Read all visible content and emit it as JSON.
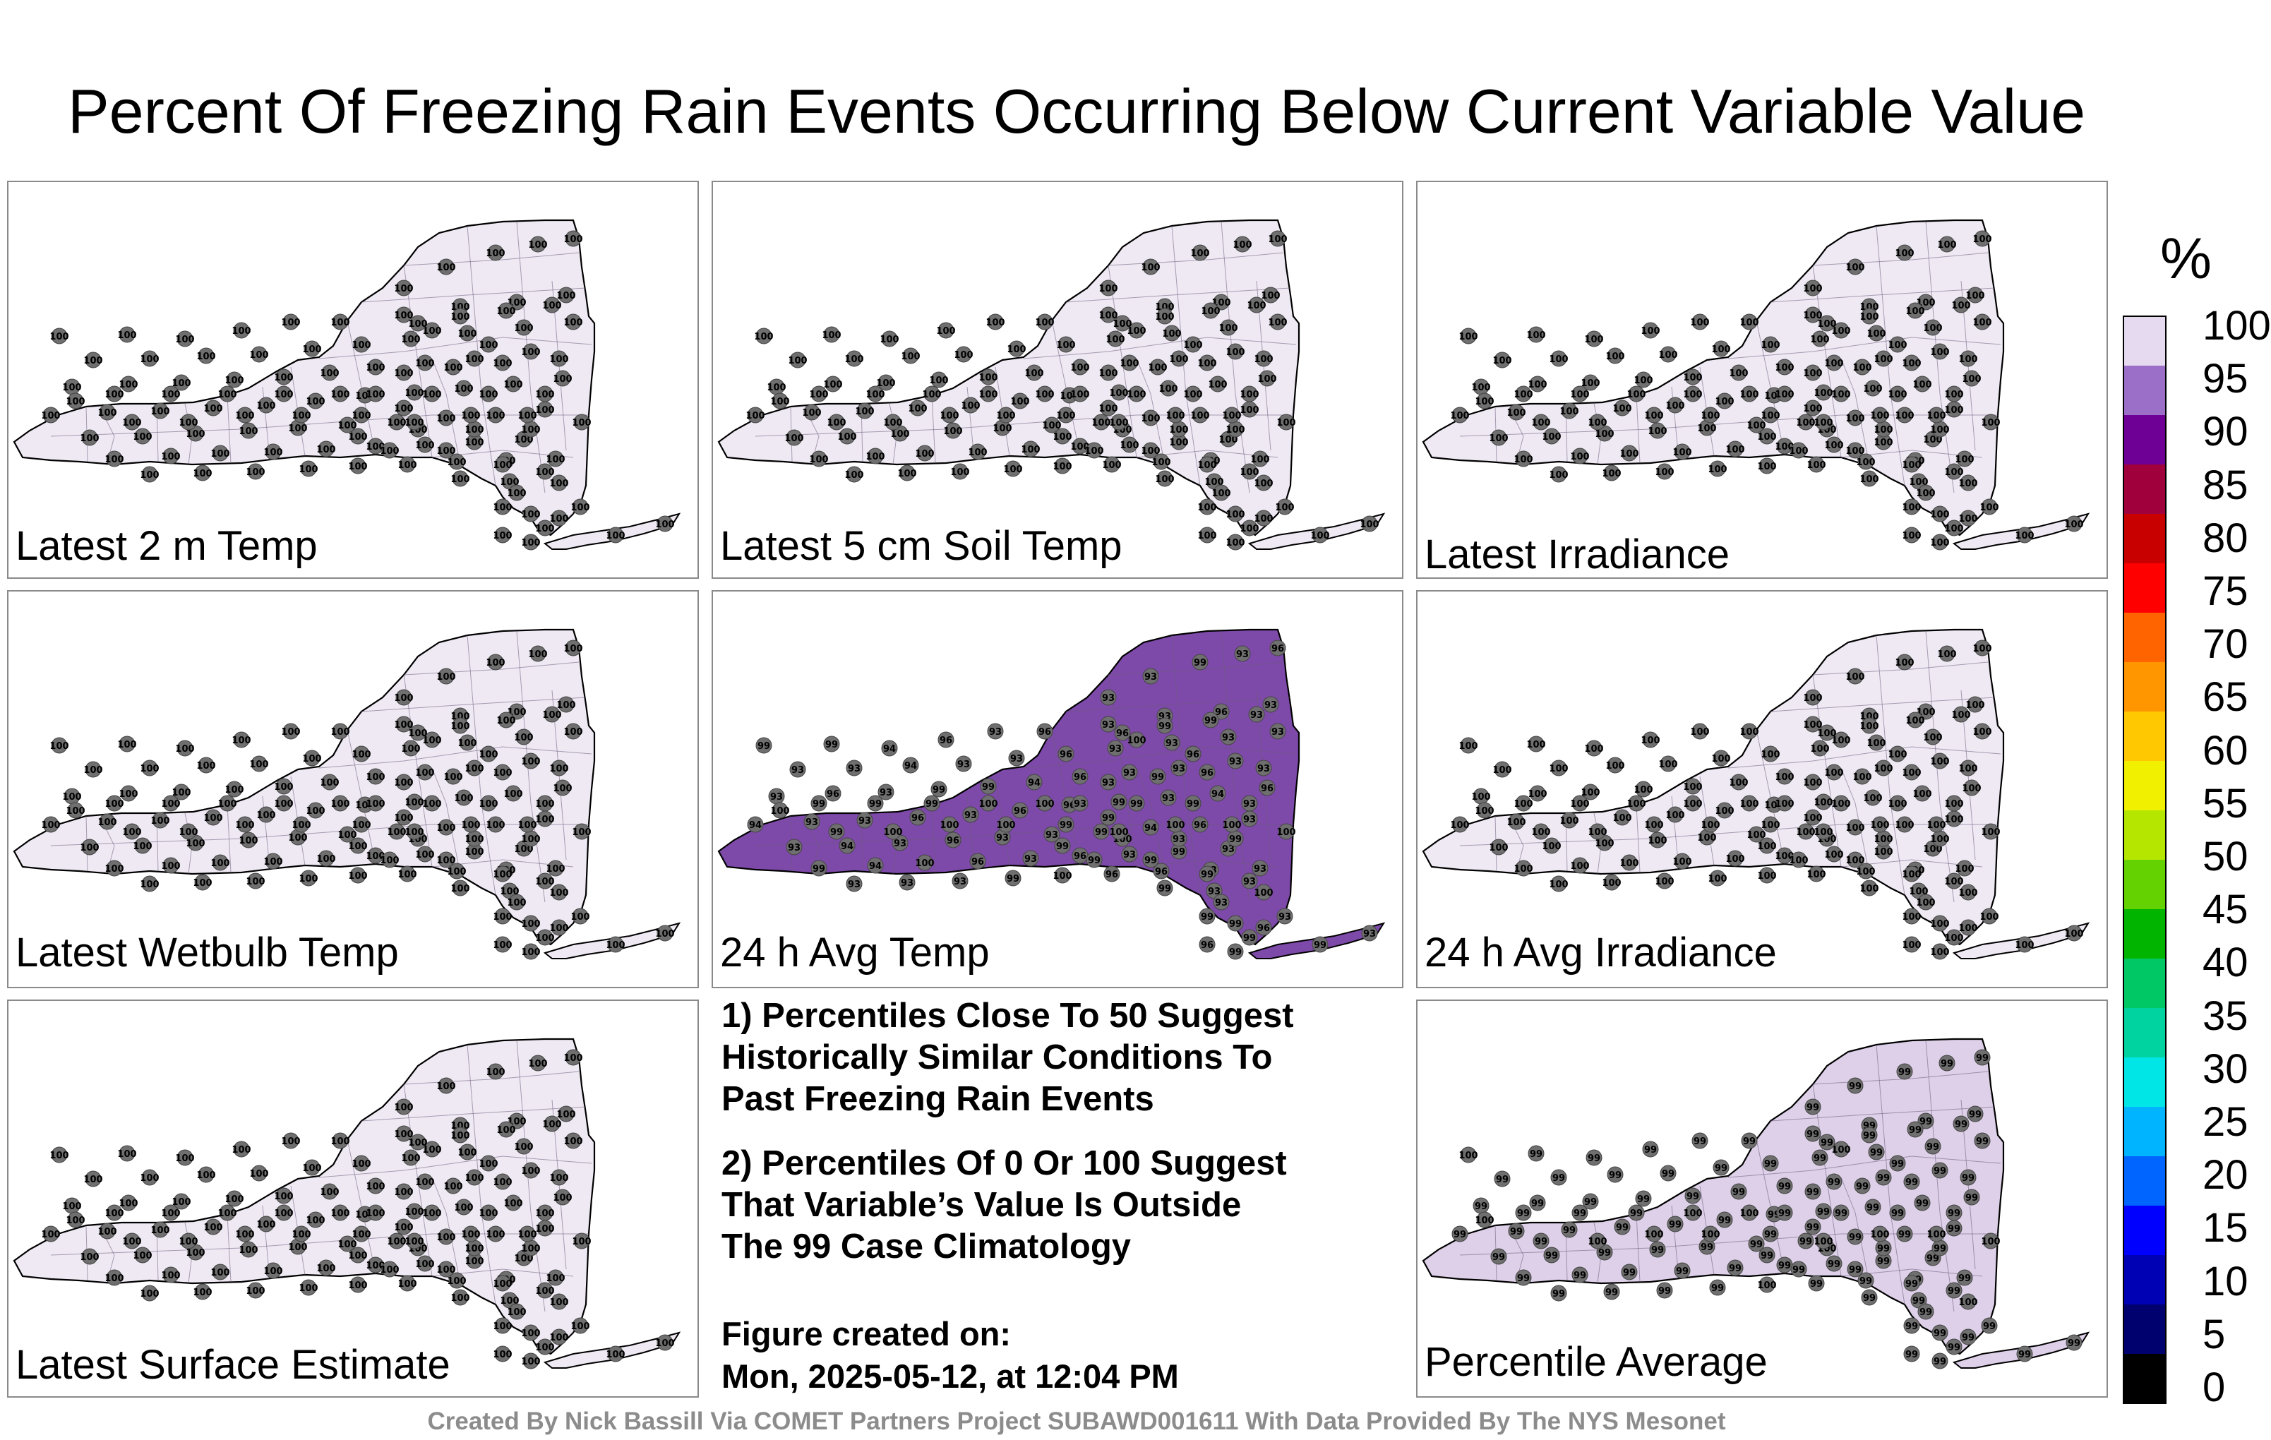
{
  "title": "Percent Of Freezing Rain Events Occurring Below Current Variable Value",
  "panels": [
    {
      "label": "Latest 2 m Temp",
      "values": [
        100,
        100,
        100,
        100,
        100,
        100,
        100,
        100,
        100,
        100,
        100,
        100,
        100,
        100,
        100,
        100,
        100,
        100,
        100,
        100,
        100,
        100,
        100,
        100,
        100,
        100,
        100,
        100,
        100,
        100,
        100,
        100,
        100,
        100,
        100,
        100,
        100,
        100,
        100,
        100,
        100,
        100,
        100,
        100,
        100,
        100,
        100,
        100,
        100,
        100,
        100,
        100,
        100,
        100,
        100,
        100,
        100,
        100,
        100,
        100,
        100,
        100,
        100,
        100,
        100,
        100,
        100,
        100,
        100,
        100,
        100,
        100,
        100,
        100,
        100,
        100,
        100,
        100,
        100,
        100,
        100,
        100,
        100,
        100,
        100,
        100,
        100,
        100,
        100,
        100,
        100,
        100,
        100,
        100,
        100,
        100,
        100,
        100,
        100,
        100,
        100,
        100,
        100,
        100,
        100,
        100,
        100,
        100,
        100,
        100,
        100,
        100,
        100,
        100,
        100,
        100,
        100,
        100,
        100,
        100,
        100,
        100,
        100,
        100,
        100
      ],
      "fill": "#efe9f3"
    },
    {
      "label": "Latest 5 cm Soil Temp",
      "values": [
        100,
        100,
        100,
        100,
        100,
        100,
        100,
        100,
        100,
        100,
        100,
        100,
        100,
        100,
        100,
        100,
        100,
        100,
        100,
        100,
        100,
        100,
        100,
        100,
        100,
        100,
        100,
        100,
        100,
        100,
        100,
        100,
        100,
        100,
        100,
        100,
        100,
        100,
        100,
        100,
        100,
        100,
        100,
        100,
        100,
        100,
        100,
        100,
        100,
        100,
        100,
        100,
        100,
        100,
        100,
        100,
        100,
        100,
        100,
        100,
        100,
        100,
        100,
        100,
        100,
        100,
        100,
        100,
        100,
        100,
        100,
        100,
        100,
        100,
        100,
        100,
        100,
        100,
        100,
        100,
        100,
        100,
        100,
        100,
        100,
        100,
        100,
        100,
        100,
        100,
        100,
        100,
        100,
        100,
        100,
        100,
        100,
        100,
        100,
        100,
        100,
        100,
        100,
        100,
        100,
        100,
        100,
        100,
        100,
        100,
        100,
        100,
        100,
        100,
        100,
        100,
        100,
        100,
        100,
        100,
        100,
        100,
        100,
        100,
        100
      ],
      "fill": "#efe9f3"
    },
    {
      "label": "Latest Irradiance",
      "values": [
        100,
        100,
        100,
        100,
        100,
        100,
        100,
        100,
        100,
        100,
        100,
        100,
        100,
        100,
        100,
        100,
        100,
        100,
        100,
        100,
        100,
        100,
        100,
        100,
        100,
        100,
        100,
        100,
        100,
        100,
        100,
        100,
        100,
        100,
        100,
        100,
        100,
        100,
        100,
        100,
        100,
        100,
        100,
        100,
        100,
        100,
        100,
        100,
        100,
        100,
        100,
        100,
        100,
        100,
        100,
        100,
        100,
        100,
        100,
        100,
        100,
        100,
        100,
        100,
        100,
        100,
        100,
        100,
        100,
        100,
        100,
        100,
        100,
        100,
        100,
        100,
        100,
        100,
        100,
        100,
        100,
        100,
        100,
        100,
        100,
        100,
        100,
        100,
        100,
        100,
        100,
        100,
        100,
        100,
        100,
        100,
        100,
        100,
        100,
        100,
        100,
        100,
        100,
        100,
        100,
        100,
        100,
        100,
        100,
        100,
        100,
        100,
        100,
        100,
        100,
        100,
        100,
        100,
        100,
        100,
        100,
        100,
        100,
        100,
        100
      ],
      "fill": "#efe9f3"
    },
    {
      "label": "Latest Wetbulb Temp",
      "values": [
        100,
        100,
        100,
        100,
        100,
        100,
        100,
        100,
        100,
        100,
        100,
        100,
        100,
        100,
        100,
        100,
        100,
        100,
        100,
        100,
        100,
        100,
        100,
        100,
        100,
        100,
        100,
        100,
        100,
        100,
        100,
        100,
        100,
        100,
        100,
        100,
        100,
        100,
        100,
        100,
        100,
        100,
        100,
        100,
        100,
        100,
        100,
        100,
        100,
        100,
        100,
        100,
        100,
        100,
        100,
        100,
        100,
        100,
        100,
        100,
        100,
        100,
        100,
        100,
        100,
        100,
        100,
        100,
        100,
        100,
        100,
        100,
        100,
        100,
        100,
        100,
        100,
        100,
        100,
        100,
        100,
        100,
        100,
        100,
        100,
        100,
        100,
        100,
        100,
        100,
        100,
        100,
        100,
        100,
        100,
        100,
        100,
        100,
        100,
        100,
        100,
        100,
        100,
        100,
        100,
        100,
        100,
        100,
        100,
        100,
        100,
        100,
        100,
        100,
        100,
        100,
        100,
        100,
        100,
        100,
        100,
        100,
        100,
        100,
        100
      ],
      "fill": "#efe9f3"
    },
    {
      "label": "24 h Avg Temp",
      "values": [
        99,
        99,
        94,
        96,
        93,
        96,
        93,
        93,
        96,
        93,
        93,
        93,
        94,
        93,
        93,
        96,
        93,
        93,
        93,
        93,
        93,
        96,
        93,
        99,
        99,
        94,
        96,
        93,
        93,
        93,
        94,
        93,
        93,
        96,
        93,
        96,
        96,
        99,
        93,
        94,
        96,
        93,
        94,
        93,
        96,
        93,
        93,
        99,
        94,
        96,
        93,
        99,
        94,
        100,
        96,
        93,
        96,
        93,
        99,
        93,
        93,
        93,
        93,
        99,
        100,
        96,
        96,
        93,
        93,
        99,
        93,
        100,
        99,
        100,
        96,
        93,
        93,
        99,
        93,
        96,
        96,
        99,
        99,
        93,
        93,
        99,
        96,
        93,
        93,
        99,
        99,
        93,
        99,
        100,
        93,
        99,
        99,
        99,
        99,
        93,
        93,
        99,
        99,
        99,
        96,
        93,
        96,
        99,
        99,
        93,
        99,
        99,
        99,
        100,
        100,
        100,
        99,
        100,
        100,
        100,
        99,
        100,
        100,
        100,
        100
      ],
      "fill": "#7e4aa9"
    },
    {
      "label": "24 h Avg Irradiance",
      "values": [
        100,
        100,
        100,
        100,
        100,
        100,
        100,
        100,
        100,
        100,
        100,
        100,
        100,
        100,
        100,
        100,
        100,
        100,
        100,
        100,
        100,
        100,
        100,
        100,
        100,
        100,
        100,
        100,
        100,
        100,
        100,
        100,
        100,
        100,
        100,
        100,
        100,
        100,
        100,
        100,
        100,
        100,
        100,
        100,
        100,
        100,
        100,
        100,
        100,
        100,
        100,
        100,
        100,
        100,
        100,
        100,
        100,
        100,
        100,
        100,
        100,
        100,
        100,
        100,
        100,
        100,
        100,
        100,
        100,
        100,
        100,
        100,
        100,
        100,
        100,
        100,
        100,
        100,
        100,
        100,
        100,
        100,
        100,
        100,
        100,
        100,
        100,
        100,
        100,
        100,
        100,
        100,
        100,
        100,
        100,
        100,
        100,
        100,
        100,
        100,
        100,
        100,
        100,
        100,
        100,
        100,
        100,
        100,
        100,
        100,
        100,
        100,
        100,
        100,
        100,
        100,
        100,
        100,
        100,
        100,
        100,
        100,
        100,
        100,
        100
      ],
      "fill": "#efe9f3"
    },
    {
      "label": "Latest Surface Estimate",
      "values": [
        100,
        100,
        100,
        100,
        100,
        100,
        100,
        100,
        100,
        100,
        100,
        100,
        100,
        100,
        100,
        100,
        100,
        100,
        100,
        100,
        100,
        100,
        100,
        100,
        100,
        100,
        100,
        100,
        100,
        100,
        100,
        100,
        100,
        100,
        100,
        100,
        100,
        100,
        100,
        100,
        100,
        100,
        100,
        100,
        100,
        100,
        100,
        100,
        100,
        100,
        100,
        100,
        100,
        100,
        100,
        100,
        100,
        100,
        100,
        100,
        100,
        100,
        100,
        100,
        100,
        100,
        100,
        100,
        100,
        100,
        100,
        100,
        100,
        100,
        100,
        100,
        100,
        100,
        100,
        100,
        100,
        100,
        100,
        100,
        100,
        100,
        100,
        100,
        100,
        100,
        100,
        100,
        100,
        100,
        100,
        100,
        100,
        100,
        100,
        100,
        100,
        100,
        100,
        100,
        100,
        100,
        100,
        100,
        100,
        100,
        100,
        100,
        100,
        100,
        100,
        100,
        100,
        100,
        100,
        100,
        100,
        100,
        100,
        100,
        100
      ],
      "fill": "#efe9f3"
    },
    {
      "label": "Percentile Average",
      "values": [
        100,
        99,
        99,
        99,
        99,
        99,
        99,
        99,
        99,
        99,
        99,
        99,
        99,
        99,
        99,
        99,
        99,
        99,
        99,
        99,
        99,
        99,
        99,
        99,
        99,
        99,
        99,
        99,
        99,
        99,
        99,
        99,
        99,
        99,
        99,
        99,
        99,
        99,
        99,
        99,
        99,
        99,
        99,
        99,
        99,
        99,
        99,
        99,
        99,
        99,
        99,
        99,
        99,
        99,
        99,
        99,
        99,
        99,
        99,
        99,
        99,
        99,
        99,
        99,
        100,
        99,
        99,
        99,
        99,
        99,
        99,
        100,
        99,
        100,
        99,
        99,
        99,
        99,
        99,
        99,
        99,
        99,
        99,
        99,
        99,
        99,
        99,
        99,
        99,
        99,
        99,
        99,
        99,
        100,
        99,
        99,
        99,
        99,
        99,
        99,
        99,
        99,
        99,
        99,
        99,
        99,
        99,
        99,
        99,
        99,
        99,
        99,
        99,
        100,
        100,
        100,
        99,
        100,
        100,
        100,
        99,
        100,
        100,
        100,
        100
      ],
      "fill": "#ddd0e8"
    }
  ],
  "notes": [
    "1) Percentiles Close To 50 Suggest\nHistorically Similar Conditions To\nPast Freezing Rain Events",
    "2) Percentiles Of 0 Or 100 Suggest\nThat Variable’s Value Is Outside\nThe 99 Case Climatology"
  ],
  "created_label": "Figure created on:",
  "created_date": "Mon, 2025-05-12, at 12:04 PM",
  "footer": "Created By Nick Bassill Via COMET Partners Project SUBAWD001611 With Data Provided By The NYS Mesonet",
  "colorbar": {
    "unit": "%",
    "labels": [
      "100",
      "95",
      "90",
      "85",
      "80",
      "75",
      "70",
      "65",
      "60",
      "55",
      "50",
      "45",
      "40",
      "35",
      "30",
      "25",
      "20",
      "15",
      "10",
      "5",
      "0"
    ],
    "colors": [
      "#000000",
      "#00006e",
      "#0000b4",
      "#0000ff",
      "#0064ff",
      "#00b4ff",
      "#00e6e6",
      "#00d2a0",
      "#00c864",
      "#00b400",
      "#64d200",
      "#b4e600",
      "#f0f000",
      "#ffc800",
      "#ff9600",
      "#ff6400",
      "#ff0000",
      "#c80000",
      "#a0003c",
      "#6e0096",
      "#9b6ec8",
      "#e6daf0"
    ]
  }
}
